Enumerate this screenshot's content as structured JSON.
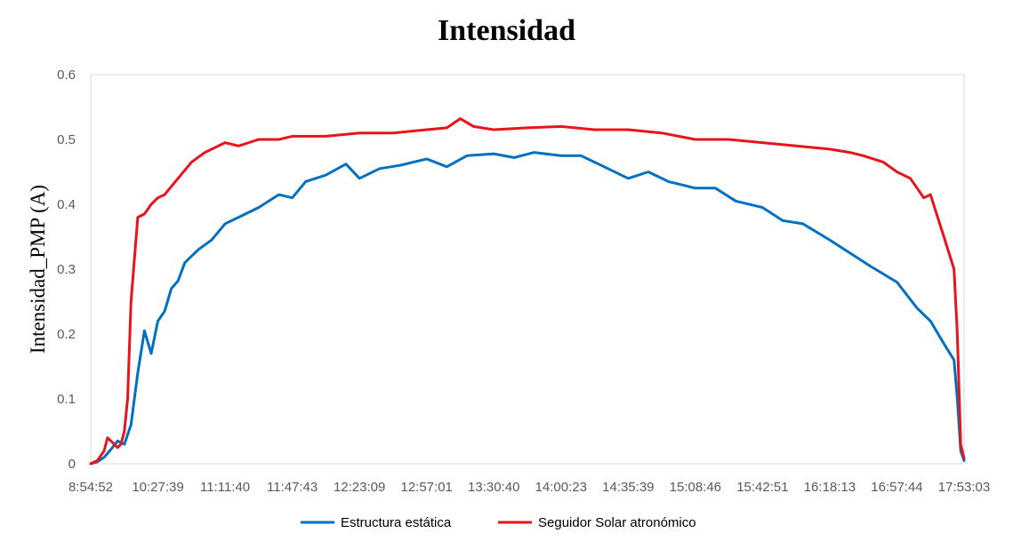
{
  "chart_data": {
    "type": "line",
    "title": "Intensidad",
    "ylabel": "Intensidad_PMP (A)",
    "xlabel": "",
    "ylim": [
      0,
      0.6
    ],
    "yticks": [
      "0",
      "0.1",
      "0.2",
      "0.3",
      "0.4",
      "0.5",
      "0.6"
    ],
    "xticks": [
      "8:54:52",
      "10:27:39",
      "11:11:40",
      "11:47:43",
      "12:23:09",
      "12:57:01",
      "13:30:40",
      "14:00:23",
      "14:35:39",
      "15:08:46",
      "15:42:51",
      "16:18:13",
      "16:57:44",
      "17:53:03"
    ],
    "grid": false,
    "legend_position": "bottom",
    "series": [
      {
        "name": "Estructura estática",
        "color": "#0070C0",
        "x_index": [
          0,
          0.1,
          0.2,
          0.3,
          0.4,
          0.5,
          0.6,
          0.7,
          0.8,
          0.9,
          1.0,
          1.1,
          1.2,
          1.3,
          1.4,
          1.6,
          1.8,
          2.0,
          2.2,
          2.5,
          2.8,
          3.0,
          3.2,
          3.5,
          3.8,
          4.0,
          4.3,
          4.6,
          5.0,
          5.3,
          5.6,
          6.0,
          6.3,
          6.6,
          7.0,
          7.3,
          7.6,
          8.0,
          8.3,
          8.6,
          9.0,
          9.3,
          9.6,
          10.0,
          10.3,
          10.6,
          11.0,
          11.3,
          11.6,
          12.0,
          12.3,
          12.5,
          12.7,
          12.85,
          12.9,
          12.95,
          13.0
        ],
        "values": [
          0,
          0.003,
          0.01,
          0.022,
          0.035,
          0.03,
          0.06,
          0.14,
          0.205,
          0.17,
          0.22,
          0.235,
          0.27,
          0.282,
          0.31,
          0.33,
          0.345,
          0.37,
          0.38,
          0.395,
          0.415,
          0.41,
          0.435,
          0.445,
          0.462,
          0.44,
          0.455,
          0.46,
          0.47,
          0.458,
          0.475,
          0.478,
          0.472,
          0.48,
          0.475,
          0.475,
          0.46,
          0.44,
          0.45,
          0.435,
          0.425,
          0.425,
          0.405,
          0.395,
          0.375,
          0.37,
          0.345,
          0.325,
          0.305,
          0.28,
          0.24,
          0.22,
          0.185,
          0.16,
          0.1,
          0.02,
          0.005
        ]
      },
      {
        "name": "Seguidor Solar atronómico",
        "color": "#E8141B",
        "x_index": [
          0,
          0.1,
          0.2,
          0.25,
          0.3,
          0.35,
          0.4,
          0.45,
          0.5,
          0.55,
          0.6,
          0.7,
          0.8,
          0.9,
          1.0,
          1.1,
          1.3,
          1.5,
          1.7,
          2.0,
          2.2,
          2.5,
          2.8,
          3.0,
          3.5,
          4.0,
          4.5,
          5.0,
          5.3,
          5.5,
          5.7,
          6.0,
          6.5,
          7.0,
          7.5,
          8.0,
          8.5,
          9.0,
          9.5,
          10.0,
          10.5,
          11.0,
          11.3,
          11.5,
          11.8,
          12.0,
          12.2,
          12.4,
          12.5,
          12.7,
          12.85,
          12.9,
          12.95,
          13.0
        ],
        "values": [
          0,
          0.005,
          0.02,
          0.04,
          0.035,
          0.03,
          0.025,
          0.03,
          0.05,
          0.1,
          0.25,
          0.38,
          0.385,
          0.4,
          0.41,
          0.415,
          0.44,
          0.465,
          0.48,
          0.495,
          0.49,
          0.5,
          0.5,
          0.505,
          0.505,
          0.51,
          0.51,
          0.515,
          0.518,
          0.532,
          0.52,
          0.515,
          0.518,
          0.52,
          0.515,
          0.515,
          0.51,
          0.5,
          0.5,
          0.495,
          0.49,
          0.485,
          0.48,
          0.475,
          0.465,
          0.45,
          0.44,
          0.41,
          0.415,
          0.35,
          0.3,
          0.2,
          0.03,
          0.008
        ]
      }
    ]
  }
}
